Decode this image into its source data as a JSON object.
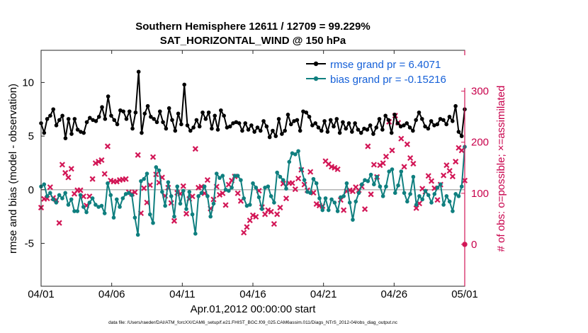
{
  "chart_data": {
    "type": "line",
    "title": "Southern Hemisphere 12611 / 12709 = 99.229%",
    "subtitle": "SAT_HORIZONTAL_WIND @ 150 hPa",
    "xlabel": "Apr.01,2012 00:00:00 start",
    "ylabel": "rmse and bias (model - observation)",
    "ylabel_right": "# of obs: o=possible; ×=assimilated",
    "xlim": [
      0,
      30
    ],
    "ylim": [
      -9,
      13
    ],
    "ylim_right": [
      -82,
      380
    ],
    "x_ticks": [
      0,
      5,
      10,
      15,
      20,
      25,
      30
    ],
    "x_tick_labels": [
      "04/01",
      "04/06",
      "04/11",
      "04/16",
      "04/21",
      "04/26",
      "05/01"
    ],
    "y_ticks": [
      -5,
      0,
      5,
      10
    ],
    "y_tick_labels": [
      "-5",
      "0",
      "5",
      "10"
    ],
    "y_right_ticks": [
      0,
      100,
      200,
      300
    ],
    "y_right_tick_labels": [
      "0",
      "100",
      "200",
      "300"
    ],
    "legend_position": "top-right",
    "colors": {
      "rmse": "#000000",
      "bias": "#0f7f7f",
      "obs": "#d21656",
      "zero_line": "#b4b4b4",
      "legend_text": "#1560d8"
    },
    "footer": "data file: /Users/raeder/DAI/ATM_forcXX/CAM6_setup/f.e21.FHIST_BGC.f09_025.CAM6assim.011/Diags_NTrS_2012-04/obs_diag_output.nc",
    "series": [
      {
        "name": "rmse grand pr = 6.4071",
        "color": "#000000",
        "values": [
          6.2,
          5.3,
          6.6,
          6.9,
          7.5,
          6.0,
          6.5,
          6.9,
          4.8,
          6.6,
          5.2,
          6.6,
          5.6,
          5.4,
          5.3,
          6.3,
          6.7,
          6.5,
          6.4,
          6.8,
          7.7,
          6.6,
          8.7,
          6.9,
          6.5,
          6.1,
          7.4,
          7.3,
          6.6,
          7.3,
          5.7,
          7.2,
          11.0,
          5.3,
          7.1,
          7.8,
          6.8,
          6.6,
          6.3,
          7.3,
          6.3,
          5.7,
          7.6,
          6.5,
          5.5,
          7.1,
          6.1,
          9.8,
          6.0,
          5.5,
          5.8,
          6.5,
          5.9,
          7.2,
          6.6,
          7.2,
          5.7,
          6.9,
          5.6,
          7.4,
          6.9,
          5.8,
          5.9,
          6.2,
          6.3,
          6.2,
          5.5,
          6.2,
          5.6,
          6.0,
          5.4,
          5.8,
          5.5,
          6.4,
          5.9,
          4.9,
          5.5,
          5.0,
          6.6,
          5.2,
          5.5,
          7.0,
          6.1,
          6.4,
          6.5,
          5.5,
          7.3,
          7.2,
          6.8,
          6.0,
          6.2,
          5.8,
          5.5,
          6.4,
          5.4,
          6.5,
          5.9,
          6.6,
          5.3,
          6.3,
          5.7,
          6.2,
          5.4,
          6.2,
          5.6,
          5.3,
          5.7,
          5.6,
          6.0,
          5.2,
          5.8,
          6.6,
          5.6,
          6.9,
          6.5,
          5.3,
          7.0,
          6.2,
          5.9,
          6.0,
          6.2,
          5.8,
          5.5,
          6.5,
          7.2,
          6.6,
          5.9,
          5.7,
          6.4,
          6.0,
          6.1,
          6.6,
          6.5,
          6.1,
          6.8,
          6.4,
          7.8,
          5.4,
          5.0,
          7.5
        ]
      },
      {
        "name": "bias grand pr = -0.15216",
        "color": "#0f7f7f",
        "values": [
          0.3,
          0.5,
          -0.6,
          -0.3,
          -0.9,
          -1.2,
          -0.5,
          -0.8,
          -0.3,
          -1.4,
          -0.9,
          -2.0,
          -2.0,
          -0.5,
          -1.6,
          -2.1,
          -1.2,
          -0.8,
          -1.4,
          -1.6,
          -1.5,
          -2.2,
          0.6,
          -0.5,
          -2.6,
          -0.9,
          -1.6,
          -0.8,
          -0.4,
          -0.3,
          -0.5,
          -2.6,
          -4.2,
          0.8,
          1.0,
          1.5,
          -2.3,
          -3.1,
          2.1,
          1.8,
          -0.2,
          -1.5,
          0.7,
          -0.6,
          -2.5,
          0.3,
          -1.3,
          -0.1,
          -1.8,
          -0.2,
          -2.3,
          -4.1,
          -0.6,
          -0.3,
          0.3,
          -0.6,
          -2.5,
          -1.3,
          1.5,
          1.1,
          1.3,
          0.0,
          -0.1,
          0.2,
          1.3,
          1.3,
          0.9,
          -0.8,
          -1.5,
          -1.4,
          0.6,
          0.2,
          -0.7,
          -1.8,
          0.2,
          0.3,
          -0.6,
          -1.2,
          1.6,
          1.2,
          0.9,
          0.1,
          2.6,
          3.4,
          3.3,
          3.6,
          1.9,
          0.9,
          -0.2,
          -0.3,
          1.0,
          0.6,
          -0.8,
          -1.9,
          -0.8,
          -1.9,
          -0.9,
          -1.2,
          -2.0,
          -0.7,
          -0.6,
          0.6,
          -1.2,
          -2.8,
          -1.1,
          -0.3,
          0.5,
          0.9,
          0.8,
          1.4,
          0.5,
          1.2,
          0.3,
          -0.6,
          0.3,
          1.7,
          1.9,
          -0.3,
          0.4,
          1.7,
          -0.3,
          -1.1,
          -0.4,
          1.2,
          -1.4,
          -0.6,
          -0.9,
          -0.1,
          -0.5,
          -1.2,
          -0.4,
          0.2,
          0.5,
          -1.4,
          -0.6,
          -1.1,
          -2.0,
          -0.4,
          -0.6,
          0.3,
          4.0
        ]
      },
      {
        "name": "# assimilated",
        "color": "#d21656",
        "marker": "x",
        "axis": "right",
        "values": [
          72,
          89,
          90,
          112,
          91,
          87,
          42,
          156,
          140,
          131,
          148,
          99,
          106,
          106,
          94,
          76,
          94,
          128,
          159,
          162,
          165,
          138,
          192,
          125,
          123,
          123,
          126,
          127,
          128,
          102,
          99,
          102,
          175,
          61,
          110,
          82,
          116,
          171,
          137,
          121,
          131,
          95,
          111,
          81,
          46,
          101,
          99,
          114,
          60,
          89,
          94,
          187,
          111,
          113,
          100,
          126,
          70,
          88,
          113,
          97,
          100,
          77,
          117,
          125,
          133,
          100,
          85,
          23,
          34,
          47,
          57,
          54,
          105,
          73,
          59,
          67,
          64,
          40,
          59,
          72,
          119,
          90,
          120,
          120,
          108,
          129,
          146,
          117,
          106,
          142,
          101,
          79,
          76,
          75,
          163,
          157,
          152,
          150,
          147,
          87,
          67,
          104,
          106,
          104,
          112,
          106,
          113,
          69,
          192,
          98,
          156,
          132,
          155,
          159,
          172,
          240,
          184,
          252,
          238,
          207,
          152,
          196,
          169,
          158,
          71,
          80,
          109,
          103,
          134,
          124,
          110,
          87,
          117,
          135,
          155,
          144,
          133,
          162,
          189,
          184,
          125
        ]
      },
      {
        "name": "# possible (point at x=30)",
        "color": "#d21656",
        "marker": "o",
        "axis": "right",
        "values": [
          0
        ]
      }
    ]
  }
}
